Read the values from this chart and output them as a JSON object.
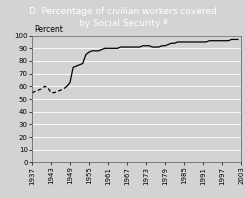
{
  "title": "D. Percentage of civilian workers covered\nby Social Security ª",
  "percent_label": "Percent",
  "xlim": [
    1937,
    2003
  ],
  "ylim": [
    0,
    100
  ],
  "xticks": [
    1937,
    1943,
    1949,
    1955,
    1961,
    1967,
    1973,
    1979,
    1985,
    1991,
    1997,
    2003
  ],
  "yticks": [
    0,
    10,
    20,
    30,
    40,
    50,
    60,
    70,
    80,
    90,
    100
  ],
  "bg_color": "#d3d3d3",
  "title_bg_color": "#3a3a3a",
  "title_text_color": "#ffffff",
  "grid_color": "#ffffff",
  "line_color": "#000000",
  "solid_data": [
    [
      1948,
      60
    ],
    [
      1949,
      63
    ],
    [
      1950,
      75
    ],
    [
      1951,
      76
    ],
    [
      1952,
      77
    ],
    [
      1953,
      78
    ],
    [
      1954,
      85
    ],
    [
      1955,
      87
    ],
    [
      1956,
      88
    ],
    [
      1957,
      88
    ],
    [
      1958,
      88
    ],
    [
      1959,
      89
    ],
    [
      1960,
      90
    ],
    [
      1961,
      90
    ],
    [
      1962,
      90
    ],
    [
      1963,
      90
    ],
    [
      1964,
      90
    ],
    [
      1965,
      91
    ],
    [
      1966,
      91
    ],
    [
      1967,
      91
    ],
    [
      1968,
      91
    ],
    [
      1969,
      91
    ],
    [
      1970,
      91
    ],
    [
      1971,
      91
    ],
    [
      1972,
      92
    ],
    [
      1973,
      92
    ],
    [
      1974,
      92
    ],
    [
      1975,
      91
    ],
    [
      1976,
      91
    ],
    [
      1977,
      91
    ],
    [
      1978,
      92
    ],
    [
      1979,
      92
    ],
    [
      1980,
      93
    ],
    [
      1981,
      94
    ],
    [
      1982,
      94
    ],
    [
      1983,
      95
    ],
    [
      1984,
      95
    ],
    [
      1985,
      95
    ],
    [
      1986,
      95
    ],
    [
      1987,
      95
    ],
    [
      1988,
      95
    ],
    [
      1989,
      95
    ],
    [
      1990,
      95
    ],
    [
      1991,
      95
    ],
    [
      1992,
      95
    ],
    [
      1993,
      96
    ],
    [
      1994,
      96
    ],
    [
      1995,
      96
    ],
    [
      1996,
      96
    ],
    [
      1997,
      96
    ],
    [
      1998,
      96
    ],
    [
      1999,
      96
    ],
    [
      2000,
      97
    ],
    [
      2001,
      97
    ],
    [
      2002,
      97
    ]
  ],
  "dashed_data": [
    [
      1937,
      55
    ],
    [
      1938,
      56
    ],
    [
      1939,
      57
    ],
    [
      1940,
      58
    ],
    [
      1941,
      60
    ],
    [
      1942,
      59
    ],
    [
      1943,
      55
    ],
    [
      1944,
      55
    ],
    [
      1945,
      56
    ],
    [
      1946,
      57
    ],
    [
      1947,
      58
    ],
    [
      1948,
      60
    ]
  ],
  "title_fontsize": 6.5,
  "tick_fontsize": 5,
  "percent_fontsize": 5.5
}
